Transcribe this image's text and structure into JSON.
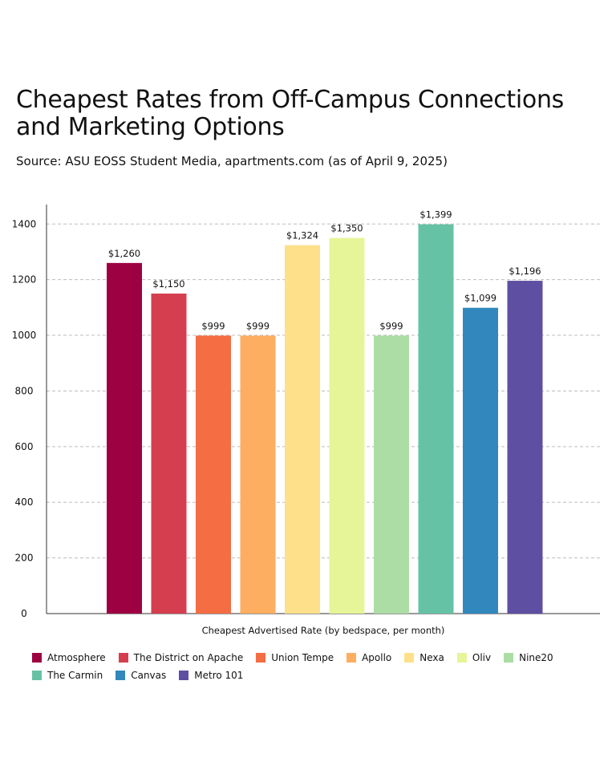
{
  "header": {
    "title": "Cheapest Rates from Off-Campus Connections and Marketing Options",
    "subtitle": "Source: ASU EOSS Student Media, apartments.com (as of April 9, 2025)"
  },
  "chart_data": {
    "type": "bar",
    "title": "Cheapest Rates from Off-Campus Connections and Marketing Options",
    "subtitle": "Source: ASU EOSS Student Media, apartments.com (as of April 9, 2025)",
    "xlabel": "Cheapest Advertised Rate (by bedspace, per month)",
    "ylabel": "",
    "ylim": [
      0,
      1470
    ],
    "yticks": [
      0,
      200,
      400,
      600,
      800,
      1000,
      1200,
      1400
    ],
    "grid": true,
    "legend_position": "bottom",
    "categories": [
      "Atmosphere",
      "The District on Apache",
      "Union Tempe",
      "Apollo",
      "Nexa",
      "Oliv",
      "Nine20",
      "The Carmin",
      "Canvas",
      "Metro 101"
    ],
    "values": [
      1260,
      1150,
      999,
      999,
      1324,
      1350,
      999,
      1399,
      1099,
      1196
    ],
    "value_labels": [
      "$1,260",
      "$1,150",
      "$999",
      "$999",
      "$1,324",
      "$1,350",
      "$999",
      "$1,399",
      "$1,099",
      "$1,196"
    ],
    "colors": [
      "#9e0142",
      "#d53e4f",
      "#f46d43",
      "#fdae61",
      "#fee08b",
      "#e6f598",
      "#abdda4",
      "#66c2a5",
      "#3288bd",
      "#5e4fa2"
    ]
  }
}
